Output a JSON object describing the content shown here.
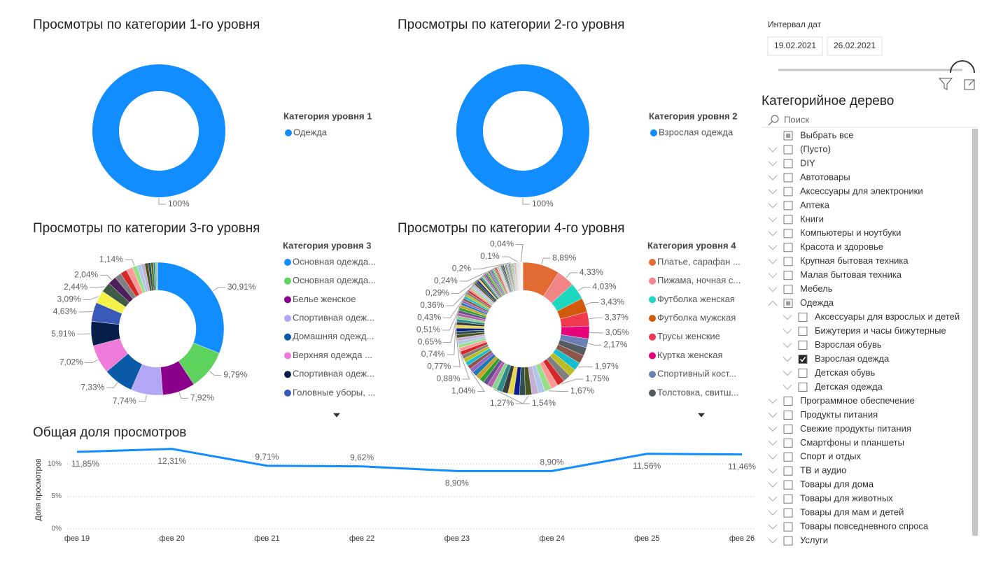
{
  "chart_data": [
    {
      "type": "donut",
      "title": "Просмотры по категории 1-го уровня",
      "legend_title": "Категория уровня 1",
      "legend": [
        "Одежда"
      ],
      "values": [
        100
      ],
      "value_labels": [
        "100%"
      ],
      "colors": [
        "#118DFF"
      ],
      "palette": [
        "#118DFF"
      ]
    },
    {
      "type": "donut",
      "title": "Просмотры по категории 2-го уровня",
      "legend_title": "Категория уровня 2",
      "legend": [
        "Взрослая одежда"
      ],
      "values": [
        100
      ],
      "value_labels": [
        "100%"
      ],
      "colors": [
        "#118DFF"
      ],
      "palette": [
        "#118DFF"
      ]
    },
    {
      "type": "donut",
      "title": "Просмотры по категории 3-го уровня",
      "legend_title": "Категория уровня 3",
      "legend": [
        "Основная одежда...",
        "Основная одежда...",
        "Белье женское",
        "Спортивная одеж...",
        "Домашняя одежд...",
        "Верхняя одежда ...",
        "Спортивная одеж...",
        "Головные уборы, ..."
      ],
      "values": [
        30.91,
        9.79,
        7.92,
        7.74,
        7.33,
        7.02,
        5.91,
        4.63,
        3.09,
        2.44,
        2.04,
        1.6,
        1.6,
        1.6,
        1.14,
        1.0,
        0.9,
        0.8,
        0.7,
        0.6,
        0.5,
        0.4,
        0.1
      ],
      "value_labels": [
        "30,91%",
        "9,79%",
        "7,92%",
        "7,74%",
        "7,33%",
        "7,02%",
        "5,91%",
        "4,63%",
        "3,09%",
        "2,44%",
        "2,04%",
        null,
        null,
        null,
        "1,14%",
        null,
        null,
        null,
        null,
        null,
        null,
        null,
        null
      ],
      "colors": [
        "#118DFF",
        "#5DD35D",
        "#8B008B",
        "#B3A6F5",
        "#0B5AA8",
        "#EE7BD9",
        "#071E4A",
        "#3A59B8",
        "#F4F24A",
        "#3F5A45",
        "#4B1F5A"
      ],
      "palette": [
        "#2E8B8B",
        "#8FD18F",
        "#B05FA8",
        "#6A4C93",
        "#2CA02C",
        "#C9A227",
        "#1F77B4",
        "#9467BD",
        "#8C564B",
        "#17BECF",
        "#BCBD22",
        "#7F7F7F",
        "#D62728",
        "#FF9896",
        "#98DF8A",
        "#AEC7E8",
        "#C5B0D5",
        "#4B5320",
        "#2F4F4F",
        "#556B2F"
      ]
    },
    {
      "type": "donut",
      "title": "Просмотры по категории 4-го уровня",
      "legend_title": "Категория уровня 4",
      "legend": [
        "Платье, сарафан ...",
        "Пижама, ночная с...",
        "Футболка женская",
        "Футболка мужская",
        "Трусы женские",
        "Куртка женская",
        "Спортивный кост...",
        "Толстовка, свитш..."
      ],
      "values": [
        8.89,
        4.33,
        4.03,
        3.43,
        3.37,
        3.05,
        2.17,
        2.0,
        2.0,
        1.97,
        1.85,
        1.85,
        1.75,
        1.7,
        1.67,
        1.6,
        1.6,
        1.54,
        1.4,
        1.4,
        1.4,
        1.4,
        1.4,
        1.27,
        1.15,
        1.15,
        1.15,
        1.15,
        1.15,
        1.04,
        0.95,
        0.95,
        0.95,
        0.95,
        0.95,
        0.88,
        0.8,
        0.8,
        0.8,
        0.8,
        0.8,
        0.77,
        0.75,
        0.74,
        0.7,
        0.7,
        0.7,
        0.7,
        0.7,
        0.65,
        0.58,
        0.58,
        0.58,
        0.58,
        0.58,
        0.58,
        0.51,
        0.47,
        0.47,
        0.47,
        0.47,
        0.47,
        0.47,
        0.43,
        0.4,
        0.4,
        0.4,
        0.4,
        0.4,
        0.4,
        0.36,
        0.32,
        0.32,
        0.32,
        0.32,
        0.32,
        0.32,
        0.32,
        0.29,
        0.26,
        0.26,
        0.26,
        0.26,
        0.26,
        0.26,
        0.26,
        0.24,
        0.22,
        0.22,
        0.22,
        0.22,
        0.22,
        0.22,
        0.2,
        0.15,
        0.15,
        0.15,
        0.15,
        0.15,
        0.15,
        0.15,
        0.15,
        0.15,
        0.15,
        0.1,
        0.07,
        0.07,
        0.07,
        0.07,
        0.07,
        0.07,
        0.07,
        0.07,
        0.07,
        0.07,
        0.04,
        0.03,
        0.03,
        0.03,
        0.03,
        0.03,
        0.03,
        0.03,
        0.03,
        0.03,
        0.03,
        0.03,
        0.03,
        0.03,
        0.03,
        0.03
      ],
      "value_labels": [
        "8,89%",
        "4,33%",
        "4,03%",
        "3,43%",
        "3,37%",
        "3,05%",
        "2,17%",
        null,
        null,
        "1,97%",
        null,
        null,
        "1,75%",
        null,
        "1,67%",
        null,
        null,
        "1,54%",
        null,
        null,
        null,
        null,
        null,
        "1,27%",
        null,
        null,
        null,
        null,
        null,
        "1,04%",
        null,
        null,
        null,
        null,
        null,
        "0,88%",
        null,
        null,
        null,
        null,
        null,
        "0,77%",
        null,
        "0,74%",
        null,
        null,
        null,
        null,
        null,
        "0,65%",
        null,
        null,
        null,
        null,
        null,
        null,
        "0,51%",
        null,
        null,
        null,
        null,
        null,
        null,
        "0,43%",
        null,
        null,
        null,
        null,
        null,
        null,
        "0,36%",
        null,
        null,
        null,
        null,
        null,
        null,
        null,
        "0,29%",
        null,
        null,
        null,
        null,
        null,
        null,
        null,
        "0,24%",
        null,
        null,
        null,
        null,
        null,
        null,
        "0,2%",
        null,
        null,
        null,
        null,
        null,
        null,
        null,
        null,
        null,
        null,
        "0,1%",
        null,
        null,
        null,
        null,
        null,
        null,
        null,
        null,
        null,
        null,
        "0,04%",
        null,
        null,
        null,
        null,
        null,
        null,
        null,
        null,
        null,
        null,
        null,
        null,
        null,
        null,
        null
      ],
      "colors": [
        "#E46A33",
        "#F28585",
        "#1DD8BF",
        "#D05A0A",
        "#F0384F",
        "#E6007A",
        "#6B7FB5",
        "#555B60"
      ],
      "palette": [
        "#2E8B8B",
        "#8FD18F",
        "#B05FA8",
        "#6A4C93",
        "#2CA02C",
        "#C9A227",
        "#1F77B4",
        "#9467BD",
        "#8C564B",
        "#17BECF",
        "#BCBD22",
        "#7F7F7F",
        "#D62728",
        "#FF9896",
        "#98DF8A",
        "#AEC7E8",
        "#C5B0D5",
        "#4B5320",
        "#2F4F4F",
        "#0B1A8C",
        "#E6D84A",
        "#3A3A3A"
      ]
    },
    {
      "type": "line",
      "title": "Общая доля просмотров",
      "y_label": "Доля просмотров",
      "categories": [
        "фев 19",
        "фев 20",
        "фев 21",
        "фев 22",
        "фев 23",
        "фев 24",
        "фев 25",
        "фев 26"
      ],
      "values": [
        11.85,
        12.31,
        9.71,
        9.62,
        8.9,
        8.9,
        11.56,
        11.46
      ],
      "value_labels": [
        "11,85%",
        "12,31%",
        "9,71%",
        "9,62%",
        "8,90%",
        "8,90%",
        "11,56%",
        "11,46%"
      ],
      "color": "#118DFF",
      "ylim": [
        0,
        12.5
      ],
      "yticks": [
        {
          "value": 0,
          "label": "0%"
        },
        {
          "value": 5,
          "label": "5%"
        },
        {
          "value": 10,
          "label": "10%"
        }
      ],
      "grid": true
    }
  ],
  "date_filter": {
    "title": "Интервал дат",
    "start": "19.02.2021",
    "end": "26.02.2021"
  },
  "tree": {
    "title": "Категорийное дерево",
    "search": "Поиск",
    "select_all": "Выбрать все",
    "select_all_state": "partial",
    "items": [
      {
        "label": "(Пусто)"
      },
      {
        "label": "DIY"
      },
      {
        "label": "Автотовары"
      },
      {
        "label": "Аксессуары для электроники"
      },
      {
        "label": "Аптека"
      },
      {
        "label": "Книги"
      },
      {
        "label": "Компьютеры и ноутбуки"
      },
      {
        "label": "Красота и здоровье"
      },
      {
        "label": "Крупная бытовая техника"
      },
      {
        "label": "Малая бытовая техника"
      },
      {
        "label": "Мебель"
      },
      {
        "label": "Одежда",
        "state": "partial",
        "expanded": true
      },
      {
        "label": "Аксессуары для взрослых и детей",
        "level": 1
      },
      {
        "label": "Бижутерия и часы бижутерные",
        "level": 1
      },
      {
        "label": "Взрослая обувь",
        "level": 1
      },
      {
        "label": "Взрослая одежда",
        "level": 1,
        "state": "checked"
      },
      {
        "label": "Детская обувь",
        "level": 1
      },
      {
        "label": "Детская одежда",
        "level": 1
      },
      {
        "label": "Программное обеспечение"
      },
      {
        "label": "Продукты питания"
      },
      {
        "label": "Свежие продукты питания"
      },
      {
        "label": "Смартфоны и планшеты"
      },
      {
        "label": "Спорт и отдых"
      },
      {
        "label": "ТВ и аудио"
      },
      {
        "label": "Товары для дома"
      },
      {
        "label": "Товары для животных"
      },
      {
        "label": "Товары для мам и детей"
      },
      {
        "label": "Товары повседневного спроса"
      },
      {
        "label": "Услуги"
      }
    ]
  }
}
